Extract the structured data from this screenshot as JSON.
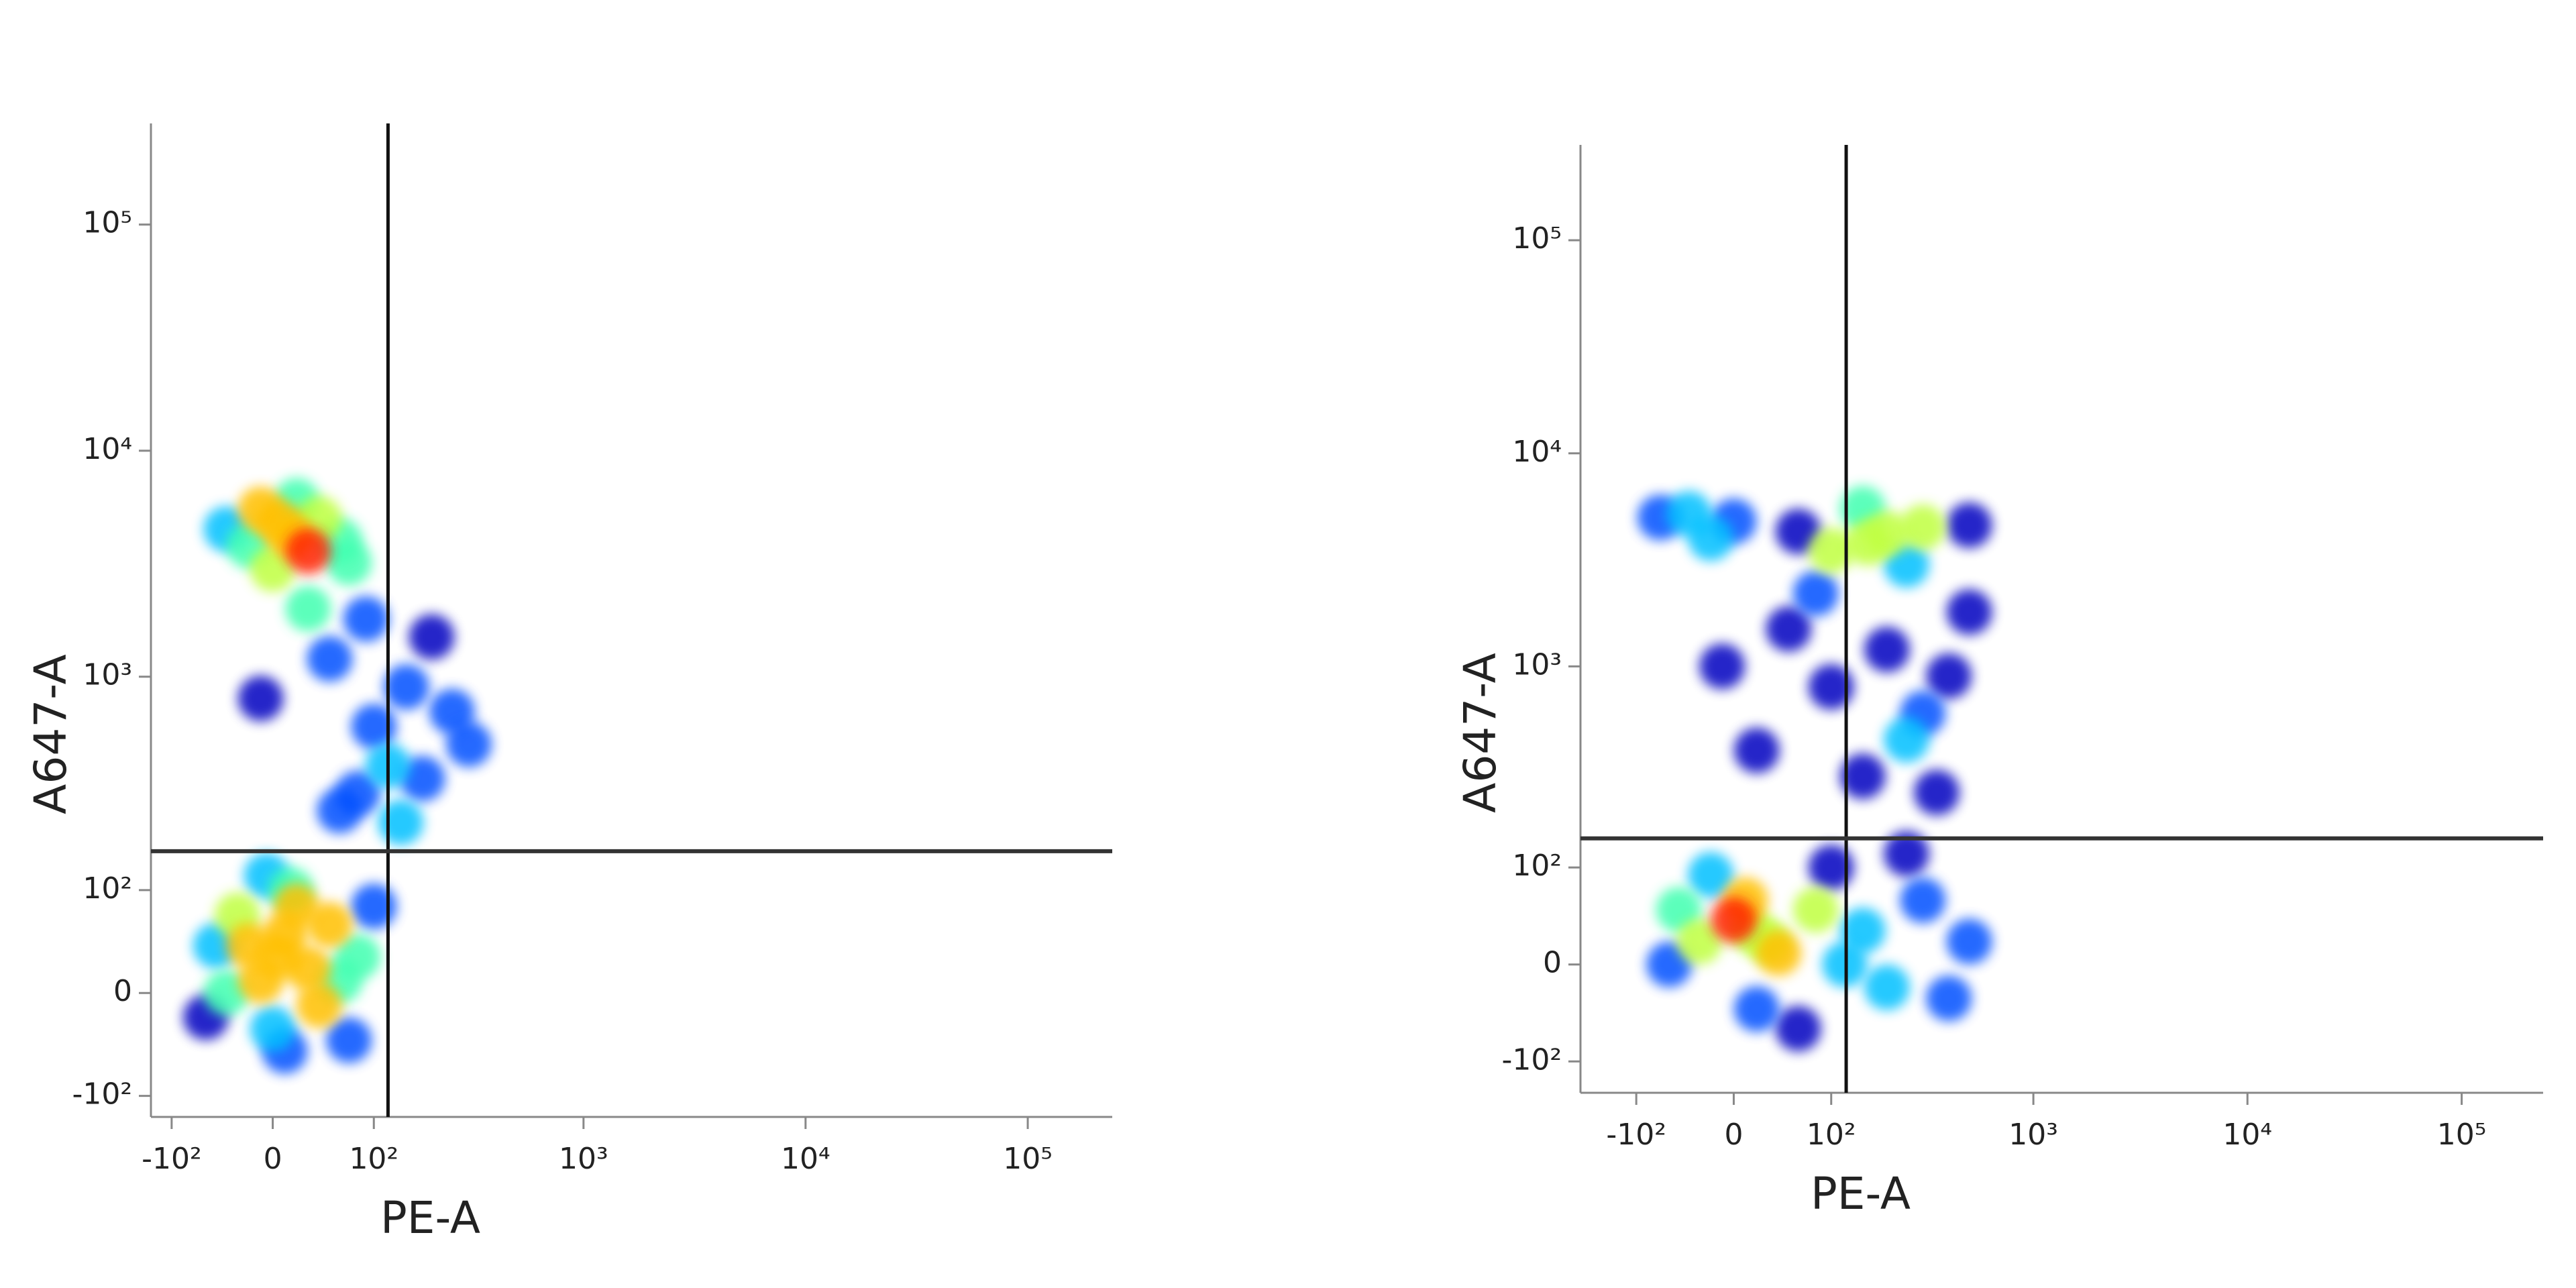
{
  "chart_data": [
    {
      "type": "scatter",
      "xlabel": "PE-A",
      "ylabel": "A647-A",
      "xscale": "biexponential",
      "yscale": "biexponential",
      "xlim": [
        -130,
        240000
      ],
      "ylim": [
        -130,
        280000
      ],
      "xticks": [
        {
          "value": -100,
          "label": "-10²"
        },
        0,
        {
          "value": 100,
          "label": "10²"
        },
        {
          "value": 1000,
          "label": "10³"
        },
        {
          "value": 10000,
          "label": "10⁴"
        },
        {
          "value": 100000,
          "label": "10⁵"
        }
      ],
      "yticks": [
        {
          "value": -100,
          "label": "-10²"
        },
        0,
        {
          "value": 100,
          "label": "10²"
        },
        {
          "value": 1000,
          "label": "10³"
        },
        {
          "value": 10000,
          "label": "10⁴"
        },
        {
          "value": 100000,
          "label": "10⁵"
        }
      ],
      "x": [
        5,
        -20,
        30,
        -40,
        50,
        0,
        20,
        -30,
        60,
        10,
        80,
        -50,
        40,
        15,
        -10,
        10,
        -60,
        70,
        100,
        -5,
        15,
        -20,
        40,
        -40,
        60,
        0,
        20,
        -10,
        70,
        30,
        5,
        50,
        100,
        150,
        200,
        80,
        30,
        120,
        250,
        -10,
        60,
        180,
        90,
        140,
        300
      ],
      "y": [
        30,
        40,
        20,
        0,
        60,
        -30,
        80,
        70,
        10,
        -50,
        30,
        40,
        -10,
        100,
        10,
        50,
        -20,
        -40,
        80,
        120,
        4200,
        3800,
        5000,
        4500,
        4000,
        3000,
        6000,
        5500,
        3200,
        3600,
        4800,
        1200,
        600,
        900,
        1500,
        300,
        2000,
        400,
        700,
        800,
        250,
        350,
        1800,
        220,
        500
      ],
      "gate": {
        "x": 120,
        "y": 160
      },
      "colormap": [
        "#0000c0",
        "#0050ff",
        "#00c0ff",
        "#40ffb0",
        "#c0ff40",
        "#ffc000",
        "#ff2000"
      ]
    },
    {
      "type": "scatter",
      "xlabel": "PE-A",
      "ylabel": "A647-A",
      "xscale": "biexponential",
      "yscale": "biexponential",
      "xlim": [
        -200,
        240000
      ],
      "ylim": [
        -150,
        280000
      ],
      "xticks": [
        {
          "value": -100,
          "label": "-10²"
        },
        0,
        {
          "value": 100,
          "label": "10²"
        },
        {
          "value": 1000,
          "label": "10³"
        },
        {
          "value": 10000,
          "label": "10⁴"
        },
        {
          "value": 100000,
          "label": "10⁵"
        }
      ],
      "yticks": [
        {
          "value": -100,
          "label": "-10²"
        },
        0,
        {
          "value": 100,
          "label": "10²"
        },
        {
          "value": 1000,
          "label": "10³"
        },
        {
          "value": 10000,
          "label": "10⁴"
        },
        {
          "value": 100000,
          "label": "10⁵"
        }
      ],
      "x": [
        15,
        0,
        -30,
        40,
        80,
        150,
        300,
        500,
        -60,
        20,
        200,
        100,
        -20,
        60,
        400,
        30,
        10,
        250,
        120,
        -50,
        160,
        200,
        100,
        300,
        -40,
        -70,
        0,
        500,
        60,
        250,
        150,
        -20,
        50,
        100,
        200,
        300,
        400,
        20,
        150,
        500,
        80,
        250,
        -10,
        350
      ],
      "y": [
        30,
        40,
        20,
        10,
        50,
        30,
        60,
        20,
        0,
        -40,
        -20,
        100,
        90,
        -60,
        -30,
        20,
        60,
        120,
        0,
        50,
        3800,
        4200,
        3500,
        4500,
        5200,
        5000,
        4800,
        4600,
        4300,
        3000,
        5500,
        4000,
        1500,
        800,
        1200,
        600,
        900,
        400,
        300,
        1800,
        2200,
        450,
        1000,
        250
      ],
      "gate": {
        "x": 122,
        "y": 146
      },
      "colormap": [
        "#0000c0",
        "#0050ff",
        "#00c0ff",
        "#40ffb0",
        "#c0ff40",
        "#ffc000",
        "#ff2000"
      ]
    }
  ]
}
